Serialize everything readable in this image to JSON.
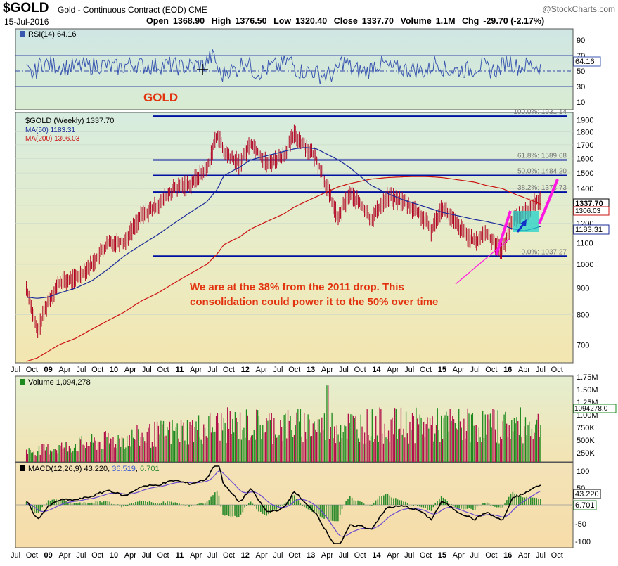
{
  "header": {
    "symbol": "$GOLD",
    "description": "Gold - Continuous Contract (EOD) CME",
    "brand": "@StockCharts.com",
    "date": "15-Jul-2016",
    "open_label": "Open",
    "open": "1368.90",
    "high_label": "High",
    "high": "1376.50",
    "low_label": "Low",
    "low": "1320.40",
    "close_label": "Close",
    "close": "1337.70",
    "volume_label": "Volume",
    "volume": "1.1M",
    "chg_label": "Chg",
    "chg": "-29.70 (-2.17%)"
  },
  "colors": {
    "price_bar": "#b00020",
    "ma50": "#1a2a99",
    "ma200": "#cc1111",
    "fib_line": "#0010a0",
    "annotation": "#e2320e",
    "channel": "#ff19e0",
    "consolidation_box": "#22d2c8",
    "volume_up": "#1e8a1e",
    "volume_down": "#b0104a",
    "rsi_line": "#3a57b0",
    "macd_line": "#000000",
    "signal_line": "#6a4bd0",
    "histogram": "#2e8b2e"
  },
  "panels": {
    "rsi": {
      "label": "RSI(14) 64.16",
      "current": "64.16",
      "ticks": [
        "90",
        "70",
        "50",
        "30",
        "10"
      ]
    },
    "gold_label": "GOLD",
    "price": {
      "label": "$GOLD (Weekly) 1337.70",
      "ma50_label": "MA(50) 1183.31",
      "ma200_label": "MA(200) 1306.03",
      "close_tag": "1337.70",
      "ma200_tag": "1306.03",
      "ma50_tag": "1183.31",
      "ticks": [
        "1900",
        "1800",
        "1700",
        "1600",
        "1500",
        "1400",
        "1300",
        "1200",
        "1100",
        "1000",
        "900",
        "800",
        "700"
      ]
    },
    "volume": {
      "label": "Volume 1,094,278",
      "current_tag": "1094278.0",
      "ticks": [
        "1.75M",
        "1.50M",
        "1.25M",
        "1.00M",
        "750K",
        "500K",
        "250K"
      ]
    },
    "macd": {
      "label_prefix": "MACD(12,26,9)",
      "macd_value": "43.220",
      "signal_value": "36.519",
      "hist_value": "6.701",
      "tag_macd": "43.220",
      "tag_hist": "6.701",
      "ticks": [
        "100",
        "50",
        "-50",
        "-100"
      ]
    }
  },
  "x_axis": [
    "Jul",
    "Oct",
    "09",
    "Apr",
    "Jul",
    "Oct",
    "10",
    "Apr",
    "Jul",
    "Oct",
    "11",
    "Apr",
    "Jul",
    "Oct",
    "12",
    "Apr",
    "Jul",
    "Oct",
    "13",
    "Apr",
    "Jul",
    "Oct",
    "14",
    "Apr",
    "Jul",
    "Oct",
    "15",
    "Apr",
    "Jul",
    "Oct",
    "16",
    "Apr",
    "Jul",
    "Oct"
  ],
  "annotation": {
    "line1": "We are at the 38% from the 2011 drop. This",
    "line2": "consolidation could power it to the 50% over time"
  },
  "chart_data": {
    "type": "line",
    "title": "$GOLD (Weekly) 1337.70",
    "fibonacci_levels": [
      {
        "label": "100.0%: 1931.14",
        "value": 1931.14
      },
      {
        "label": "61.8%: 1589.68",
        "value": 1589.68
      },
      {
        "label": "50.0%: 1484.20",
        "value": 1484.2
      },
      {
        "label": "38.2%: 1378.73",
        "value": 1378.73
      },
      {
        "label": "0.0%: 1037.27",
        "value": 1037.27
      }
    ],
    "ylim": [
      650,
      1950
    ],
    "x": [
      "2008-09",
      "2008-11",
      "2009-01",
      "2009-03",
      "2009-06",
      "2009-09",
      "2009-12",
      "2010-03",
      "2010-06",
      "2010-09",
      "2010-12",
      "2011-03",
      "2011-06",
      "2011-08",
      "2011-09",
      "2011-12",
      "2012-02",
      "2012-05",
      "2012-08",
      "2012-10",
      "2012-12",
      "2013-02",
      "2013-04",
      "2013-06",
      "2013-08",
      "2013-10",
      "2013-12",
      "2014-03",
      "2014-06",
      "2014-09",
      "2014-11",
      "2015-01",
      "2015-04",
      "2015-07",
      "2015-09",
      "2015-12",
      "2016-02",
      "2016-04",
      "2016-06",
      "2016-07"
    ],
    "series": [
      {
        "name": "$GOLD (Weekly)",
        "values": [
          900,
          740,
          850,
          920,
          940,
          1000,
          1100,
          1110,
          1240,
          1300,
          1400,
          1430,
          1530,
          1790,
          1650,
          1560,
          1720,
          1560,
          1620,
          1780,
          1690,
          1600,
          1400,
          1220,
          1370,
          1310,
          1220,
          1350,
          1320,
          1250,
          1160,
          1290,
          1180,
          1100,
          1150,
          1060,
          1230,
          1250,
          1320,
          1337.7
        ]
      },
      {
        "name": "MA(50)",
        "values": [
          865,
          860,
          865,
          880,
          900,
          930,
          980,
          1040,
          1090,
          1140,
          1200,
          1260,
          1320,
          1400,
          1480,
          1540,
          1590,
          1620,
          1650,
          1670,
          1680,
          1670,
          1630,
          1590,
          1540,
          1480,
          1420,
          1370,
          1330,
          1300,
          1280,
          1260,
          1240,
          1220,
          1210,
          1190,
          1170,
          1160,
          1175,
          1183.31
        ]
      },
      {
        "name": "MA(200)",
        "values": [
          650,
          660,
          680,
          700,
          720,
          750,
          780,
          810,
          850,
          880,
          920,
          960,
          1000,
          1050,
          1090,
          1130,
          1170,
          1210,
          1250,
          1290,
          1320,
          1350,
          1380,
          1410,
          1430,
          1445,
          1460,
          1470,
          1475,
          1477,
          1475,
          1470,
          1455,
          1440,
          1420,
          1400,
          1370,
          1345,
          1320,
          1306.03
        ]
      }
    ]
  }
}
